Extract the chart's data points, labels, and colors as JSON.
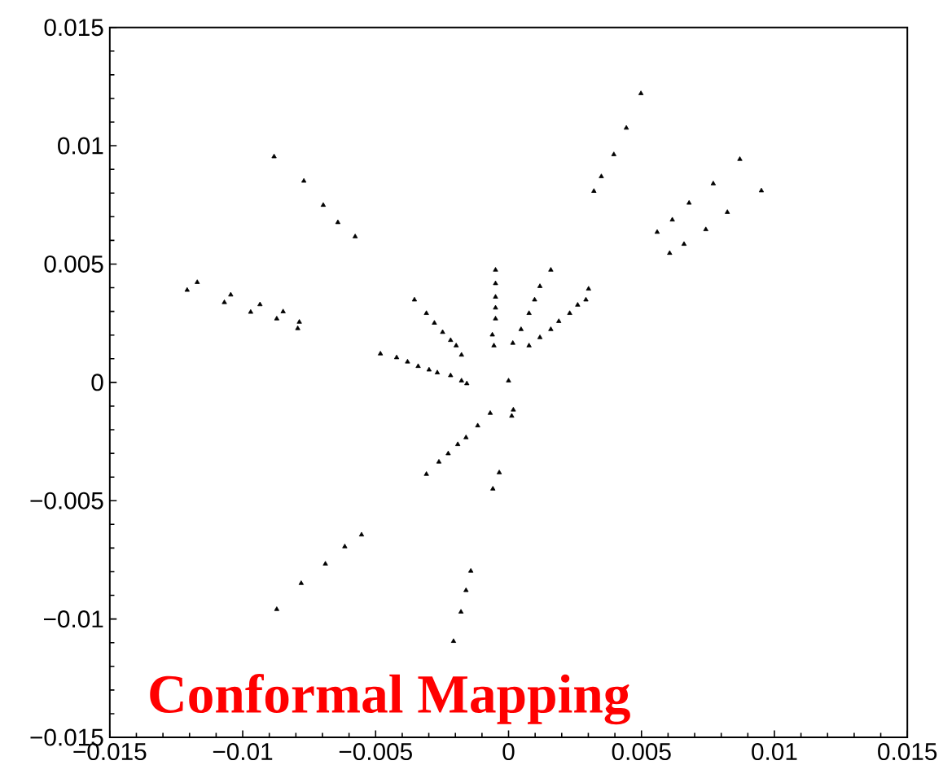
{
  "chart_data": {
    "type": "scatter",
    "annotations": [
      "Conformal Mapping"
    ],
    "xlim": [
      -0.015,
      0.015
    ],
    "ylim": [
      -0.015,
      0.015
    ],
    "xticks": [
      {
        "value": -0.015,
        "label": "−0.015"
      },
      {
        "value": -0.01,
        "label": "−0.01"
      },
      {
        "value": -0.005,
        "label": "−0.005"
      },
      0,
      0.005,
      0.01,
      0.015
    ],
    "yticks": [
      {
        "value": -0.015,
        "label": "−0.015"
      },
      {
        "value": -0.01,
        "label": "−0.01"
      },
      {
        "value": -0.005,
        "label": "−0.005"
      },
      0,
      0.005,
      0.01,
      0.015
    ],
    "marker": "triangle",
    "series": [
      {
        "color": "#000000",
        "x": [
          -0.00882,
          -0.0077,
          -0.00697,
          -0.00642,
          -0.00577,
          -0.01209,
          -0.01171,
          -0.01069,
          -0.01045,
          -0.0097,
          -0.00935,
          -0.00872,
          -0.00848,
          -0.00793,
          -0.00787,
          0.00498,
          0.00443,
          0.00396,
          0.00349,
          0.00321,
          0.0087,
          0.0077,
          0.00679,
          0.00616,
          0.00559,
          0.00951,
          0.00823,
          0.00742,
          0.0066,
          0.00606,
          -0.00872,
          -0.0078,
          -0.00689,
          -0.00616,
          -0.00553,
          -0.00207,
          -0.00179,
          -0.0016,
          -0.00142,
          -0.00309,
          -0.00262,
          -0.00227,
          -0.00191,
          -0.0016,
          -0.00116,
          -0.00069,
          -0.00059,
          -0.00035,
          0.00012,
          0.00018,
          0,
          -0.00482,
          -0.00421,
          -0.0038,
          -0.0034,
          -0.00299,
          -0.00268,
          -0.00218,
          -0.00177,
          -0.00157,
          -0.00354,
          -0.00309,
          -0.00279,
          -0.00248,
          -0.00218,
          -0.00197,
          -0.00177,
          -0.00049,
          -0.00049,
          -0.00049,
          -0.00049,
          -0.00049,
          -0.00061,
          -0.00055,
          0.00159,
          0.00118,
          0.00098,
          0.00077,
          0.00047,
          0.00016,
          0.00301,
          0.0026,
          0.0023,
          0.00189,
          0.00159,
          0.00118,
          0.00077,
          0.00291
        ],
        "values": [
          0.00954,
          0.00851,
          0.00749,
          0.00676,
          0.00616,
          0.0039,
          0.00423,
          0.00338,
          0.0037,
          0.00297,
          0.00329,
          0.00269,
          0.00299,
          0.00228,
          0.00255,
          0.01221,
          0.01075,
          0.00963,
          0.0087,
          0.00808,
          0.00943,
          0.0084,
          0.00758,
          0.00687,
          0.00635,
          0.0081,
          0.00719,
          0.00646,
          0.00584,
          0.00546,
          -0.00959,
          -0.00849,
          -0.00767,
          -0.00694,
          -0.00644,
          -0.01094,
          -0.0097,
          -0.00879,
          -0.00797,
          -0.00388,
          -0.00336,
          -0.00301,
          -0.00262,
          -0.00233,
          -0.00183,
          -0.0013,
          -0.0045,
          -0.00381,
          -0.00142,
          -0.00116,
          7e-05,
          0.00121,
          0.00105,
          0.00087,
          0.00068,
          0.00053,
          0.00041,
          0.00029,
          7e-05,
          -5e-05,
          0.00349,
          0.00292,
          0.00251,
          0.00212,
          0.00178,
          0.00155,
          0.00116,
          0.00475,
          0.00418,
          0.00361,
          0.00315,
          0.00269,
          0.00201,
          0.00155,
          0.00475,
          0.00406,
          0.00349,
          0.00292,
          0.00224,
          0.00166,
          0.00395,
          0.00327,
          0.00292,
          0.00258,
          0.00224,
          0.0019,
          0.00155,
          0.00349
        ]
      }
    ]
  }
}
